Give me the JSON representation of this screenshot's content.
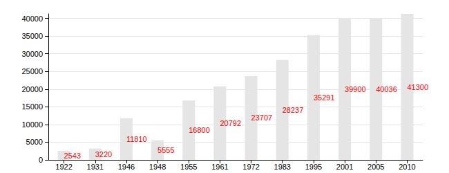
{
  "chart_data": {
    "type": "bar",
    "categories": [
      "1922",
      "1931",
      "1946",
      "1948",
      "1955",
      "1961",
      "1972",
      "1983",
      "1995",
      "2001",
      "2005",
      "2010"
    ],
    "values": [
      2543,
      3220,
      11810,
      5555,
      16800,
      20792,
      23707,
      28237,
      35291,
      39900,
      40036,
      41300
    ],
    "color": "#e5e5e5",
    "ylim": [
      0,
      41300
    ],
    "yticks": [
      0,
      5000,
      10000,
      15000,
      20000,
      25000,
      30000,
      35000,
      40000
    ],
    "grid": true,
    "data_labels": true
  }
}
